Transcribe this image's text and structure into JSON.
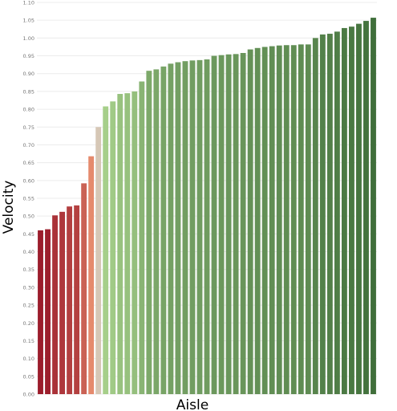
{
  "chart_data": {
    "type": "bar",
    "title": "",
    "xlabel": "Aisle",
    "ylabel": "Velocity",
    "ylim": [
      0,
      1.1
    ],
    "yticks": [
      "0.00",
      "0.05",
      "0.10",
      "0.15",
      "0.20",
      "0.25",
      "0.30",
      "0.35",
      "0.40",
      "0.45",
      "0.50",
      "0.55",
      "0.60",
      "0.65",
      "0.70",
      "0.75",
      "0.80",
      "0.85",
      "0.90",
      "0.95",
      "1.00",
      "1.05",
      "1.10"
    ],
    "x_tick_labels_visible": false,
    "grid": true,
    "legend": "none",
    "values": [
      0.46,
      0.463,
      0.502,
      0.512,
      0.527,
      0.53,
      0.592,
      0.668,
      0.75,
      0.808,
      0.822,
      0.843,
      0.845,
      0.85,
      0.878,
      0.908,
      0.912,
      0.92,
      0.928,
      0.932,
      0.935,
      0.937,
      0.938,
      0.94,
      0.95,
      0.952,
      0.954,
      0.955,
      0.958,
      0.968,
      0.972,
      0.975,
      0.977,
      0.979,
      0.98,
      0.98,
      0.982,
      0.982,
      1.0,
      1.01,
      1.012,
      1.018,
      1.028,
      1.032,
      1.04,
      1.048,
      1.057
    ],
    "color_scale": {
      "low": "#9b1c2b",
      "mid_low": "#e58a6d",
      "mid": "#d6c7b6",
      "mid_high": "#a6cf8a",
      "high": "#3f6e3a"
    }
  }
}
